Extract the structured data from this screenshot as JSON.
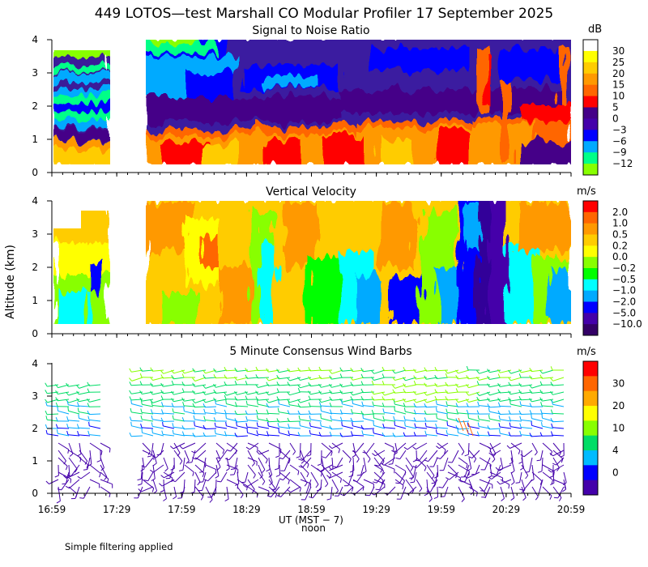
{
  "title": "449 LOTOS—test Marshall CO Modular Profiler 17 September 2025",
  "footnote": "Simple filtering applied",
  "chart_data": [
    {
      "type": "heatmap",
      "title": "Signal to Noise Ratio",
      "unit": "dB",
      "ylabel": "Altitude (km)",
      "xlabel": "UT  (MST − 7)",
      "xlabel2": "noon",
      "x_ticks": [
        "16:59",
        "17:29",
        "17:59",
        "18:29",
        "18:59",
        "19:29",
        "19:59",
        "20:29",
        "20:59"
      ],
      "y_ticks": [
        "0",
        "1",
        "2",
        "3",
        "4"
      ],
      "ylim": [
        0,
        4
      ],
      "data_gap": [
        "17:24",
        "17:49"
      ],
      "colorbar": {
        "labels": [
          "30",
          "25",
          "20",
          "15",
          "10",
          "5",
          "0",
          "−3",
          "−6",
          "−9",
          "−12"
        ],
        "colors": [
          "#ffffff",
          "#ffff00",
          "#ffcc00",
          "#ff9900",
          "#ff6600",
          "#ff0000",
          "#440088",
          "#4400aa",
          "#0000ff",
          "#00aaff",
          "#00ff88",
          "#88ff00"
        ]
      }
    },
    {
      "type": "heatmap",
      "title": "Vertical Velocity",
      "unit": "m/s",
      "ylabel": "Altitude (km)",
      "y_ticks": [
        "0",
        "1",
        "2",
        "3",
        "4"
      ],
      "ylim": [
        0,
        4
      ],
      "data_gap": [
        "17:24",
        "17:49"
      ],
      "colorbar": {
        "labels": [
          "2.0",
          "1.0",
          "0.5",
          "0.2",
          "0.0",
          "−0.2",
          "−0.5",
          "−1.0",
          "−2.0",
          "−5.0",
          "−10.0"
        ],
        "colors": [
          "#ff0000",
          "#ff6600",
          "#ff9900",
          "#ffcc00",
          "#ffff00",
          "#88ff00",
          "#00ff00",
          "#00ffff",
          "#00aaff",
          "#0000ff",
          "#4400aa",
          "#330066"
        ]
      }
    },
    {
      "type": "wind_barbs",
      "title": "5 Minute Consensus Wind Barbs",
      "unit": "m/s",
      "ylabel": "Altitude (km)",
      "y_ticks": [
        "0",
        "1",
        "2",
        "3",
        "4"
      ],
      "ylim": [
        0,
        4
      ],
      "colorbar": {
        "labels": [
          "30",
          "20",
          "10",
          "4",
          "0"
        ],
        "colors": [
          "#ff0000",
          "#ff6600",
          "#ffaa00",
          "#ffff00",
          "#88ff00",
          "#00dd66",
          "#00bbff",
          "#0000ff",
          "#4400aa"
        ]
      }
    }
  ]
}
